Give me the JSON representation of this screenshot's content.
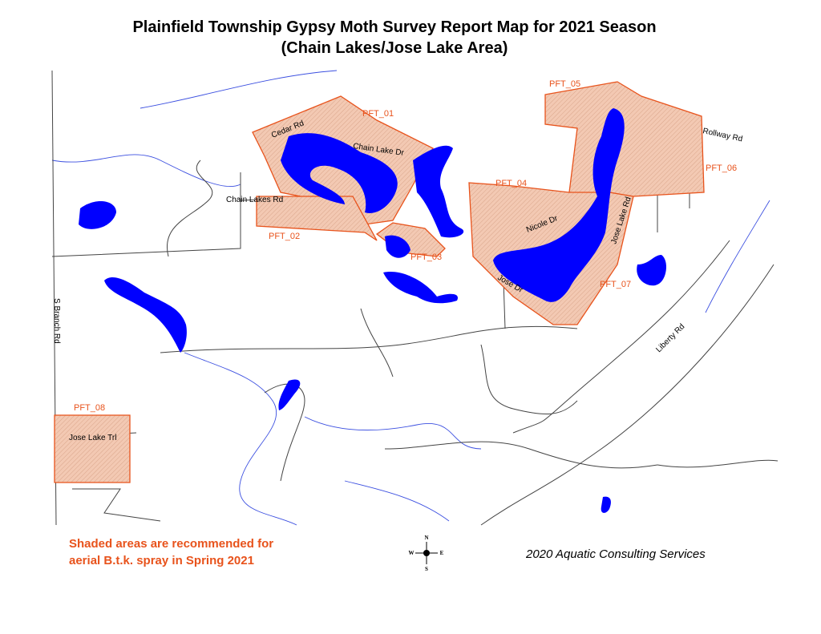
{
  "title": {
    "line1": "Plainfield Township Gypsy Moth Survey Report Map for 2021 Season",
    "line2": "(Chain Lakes/Jose Lake Area)"
  },
  "zones": [
    "PFT_01",
    "PFT_02",
    "PFT_03",
    "PFT_04",
    "PFT_05",
    "PFT_06",
    "PFT_07",
    "PFT_08"
  ],
  "roads": [
    "Cedar Rd",
    "Chain Lake Dr",
    "Chain Lakes Rd",
    "Rollway Rd",
    "Nicole Dr",
    "Jose Lake Rd",
    "Jose Dr",
    "Liberty Rd",
    "S Branch Rd",
    "Jose Lake Trl"
  ],
  "note": {
    "line1": "Shaded areas are recommended for",
    "line2": "aerial B.t.k. spray in Spring 2021"
  },
  "compass": {
    "north": "N",
    "south": "S",
    "east": "E",
    "west": "W"
  },
  "credit": "2020 Aquatic Consulting Services"
}
